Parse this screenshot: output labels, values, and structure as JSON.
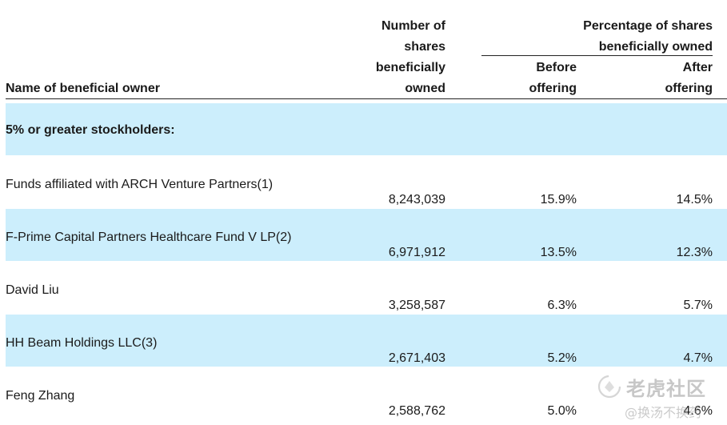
{
  "header": {
    "name_col": "Name of beneficial owner",
    "shares_col": [
      "Number of",
      "shares",
      "beneficially",
      "owned"
    ],
    "pct_group": [
      "Percentage of shares",
      "beneficially owned"
    ],
    "before_col": [
      "Before",
      "offering"
    ],
    "after_col": [
      "After",
      "offering"
    ]
  },
  "section_title": "5% or greater stockholders:",
  "rows": [
    {
      "name": "Funds affiliated with ARCH Venture Partners(1)",
      "shares": "8,243,039",
      "before": "15.9%",
      "after": "14.5%"
    },
    {
      "name": "F-Prime Capital Partners Healthcare Fund V LP(2)",
      "shares": "6,971,912",
      "before": "13.5%",
      "after": "12.3%"
    },
    {
      "name": "David Liu",
      "shares": "3,258,587",
      "before": "6.3%",
      "after": "5.7%"
    },
    {
      "name": "HH Beam Holdings LLC(3)",
      "shares": "2,671,403",
      "before": "5.2%",
      "after": "4.7%"
    },
    {
      "name": "Feng Zhang",
      "shares": "2,588,762",
      "before": "5.0%",
      "after": "4.6%"
    }
  ],
  "colors": {
    "band": "#cceefc"
  },
  "watermark": {
    "line1": "老虎社区",
    "line2": "@换汤不换药",
    "icon": "tiger-logo-icon"
  }
}
